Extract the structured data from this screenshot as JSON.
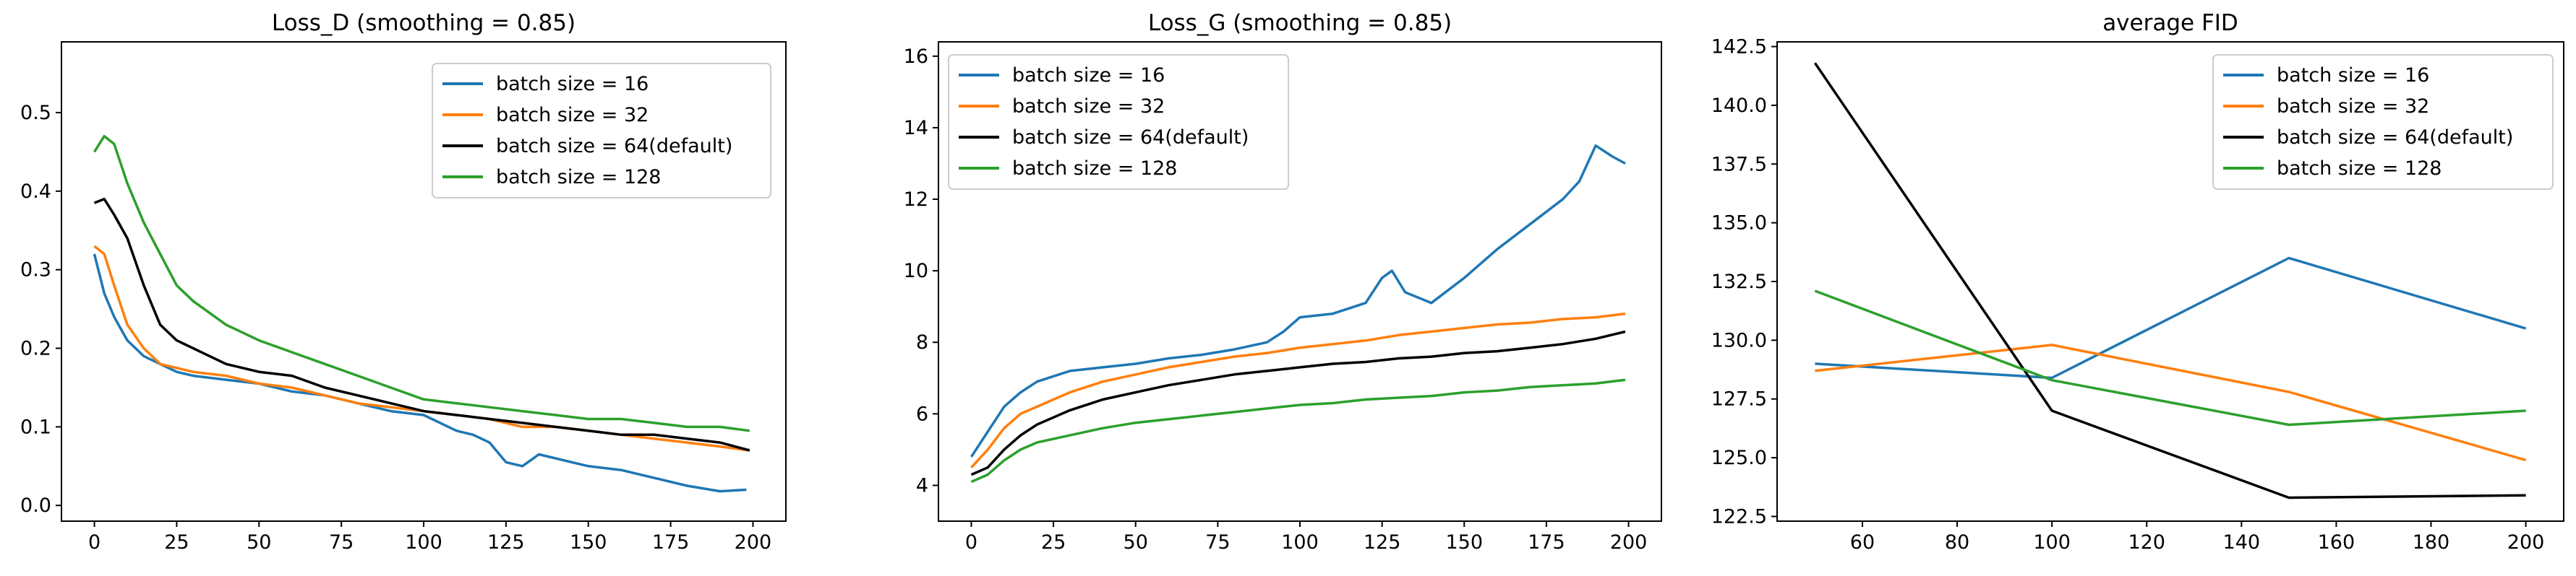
{
  "colors": {
    "bs16": "#1f77b4",
    "bs32": "#ff7f0e",
    "bs64": "#000000",
    "bs128": "#2ca02c"
  },
  "chart_data": [
    {
      "type": "line",
      "title": "Loss_D (smoothing = 0.85)",
      "xlabel": "",
      "ylabel": "",
      "xlim": [
        -10,
        210
      ],
      "ylim": [
        -0.02,
        0.59
      ],
      "xticks": [
        0,
        25,
        50,
        75,
        100,
        125,
        150,
        175,
        200
      ],
      "yticks": [
        0.0,
        0.1,
        0.2,
        0.3,
        0.4,
        0.5
      ],
      "ytick_labels": [
        "0.0",
        "0.1",
        "0.2",
        "0.3",
        "0.4",
        "0.5"
      ],
      "legend_position": "top-right",
      "series": [
        {
          "name": "batch size = 16",
          "color_key": "bs16",
          "x": [
            0,
            3,
            6,
            10,
            15,
            20,
            25,
            30,
            40,
            50,
            60,
            70,
            80,
            90,
            100,
            105,
            110,
            115,
            120,
            125,
            130,
            135,
            140,
            145,
            150,
            160,
            170,
            180,
            190,
            198
          ],
          "values": [
            0.32,
            0.27,
            0.24,
            0.21,
            0.19,
            0.18,
            0.17,
            0.165,
            0.16,
            0.155,
            0.145,
            0.14,
            0.13,
            0.12,
            0.115,
            0.105,
            0.095,
            0.09,
            0.08,
            0.055,
            0.05,
            0.065,
            0.06,
            0.055,
            0.05,
            0.045,
            0.035,
            0.025,
            0.018,
            0.02
          ]
        },
        {
          "name": "batch size = 32",
          "color_key": "bs32",
          "x": [
            0,
            3,
            6,
            10,
            15,
            20,
            30,
            40,
            50,
            60,
            70,
            80,
            90,
            100,
            110,
            120,
            130,
            140,
            150,
            160,
            170,
            180,
            190,
            199
          ],
          "values": [
            0.33,
            0.32,
            0.28,
            0.23,
            0.2,
            0.18,
            0.17,
            0.165,
            0.155,
            0.15,
            0.14,
            0.13,
            0.125,
            0.12,
            0.115,
            0.11,
            0.1,
            0.1,
            0.095,
            0.09,
            0.085,
            0.08,
            0.075,
            0.07
          ]
        },
        {
          "name": "batch size = 64(default)",
          "color_key": "bs64",
          "x": [
            0,
            3,
            6,
            10,
            15,
            20,
            25,
            30,
            35,
            40,
            50,
            60,
            70,
            80,
            90,
            100,
            110,
            120,
            130,
            140,
            150,
            160,
            170,
            180,
            190,
            199
          ],
          "values": [
            0.385,
            0.39,
            0.37,
            0.34,
            0.28,
            0.23,
            0.21,
            0.2,
            0.19,
            0.18,
            0.17,
            0.165,
            0.15,
            0.14,
            0.13,
            0.12,
            0.115,
            0.11,
            0.105,
            0.1,
            0.095,
            0.09,
            0.09,
            0.085,
            0.08,
            0.07
          ]
        },
        {
          "name": "batch size = 128",
          "color_key": "bs128",
          "x": [
            0,
            3,
            6,
            10,
            15,
            20,
            25,
            30,
            40,
            50,
            60,
            70,
            80,
            90,
            100,
            110,
            120,
            130,
            140,
            150,
            160,
            170,
            180,
            190,
            199
          ],
          "values": [
            0.45,
            0.47,
            0.46,
            0.41,
            0.36,
            0.32,
            0.28,
            0.26,
            0.23,
            0.21,
            0.195,
            0.18,
            0.165,
            0.15,
            0.135,
            0.13,
            0.125,
            0.12,
            0.115,
            0.11,
            0.11,
            0.105,
            0.1,
            0.1,
            0.095
          ]
        }
      ]
    },
    {
      "type": "line",
      "title": "Loss_G (smoothing = 0.85)",
      "xlabel": "",
      "ylabel": "",
      "xlim": [
        -10,
        210
      ],
      "ylim": [
        3.0,
        16.4
      ],
      "xticks": [
        0,
        25,
        50,
        75,
        100,
        125,
        150,
        175,
        200
      ],
      "yticks": [
        4,
        6,
        8,
        10,
        12,
        14,
        16
      ],
      "ytick_labels": [
        "4",
        "6",
        "8",
        "10",
        "12",
        "14",
        "16"
      ],
      "legend_position": "top-left",
      "series": [
        {
          "name": "batch size = 16",
          "color_key": "bs16",
          "x": [
            0,
            5,
            10,
            15,
            20,
            30,
            40,
            50,
            60,
            70,
            80,
            90,
            95,
            100,
            110,
            120,
            125,
            128,
            132,
            140,
            150,
            160,
            170,
            180,
            185,
            190,
            195,
            199
          ],
          "values": [
            4.8,
            5.5,
            6.2,
            6.6,
            6.9,
            7.2,
            7.3,
            7.4,
            7.55,
            7.65,
            7.8,
            8.0,
            8.3,
            8.7,
            8.8,
            9.1,
            9.8,
            10.0,
            9.4,
            9.1,
            9.8,
            10.6,
            11.3,
            12.0,
            12.5,
            13.5,
            13.2,
            13.0
          ]
        },
        {
          "name": "batch size = 32",
          "color_key": "bs32",
          "x": [
            0,
            5,
            10,
            15,
            20,
            30,
            40,
            50,
            60,
            70,
            80,
            90,
            100,
            110,
            120,
            130,
            140,
            150,
            160,
            170,
            180,
            190,
            199
          ],
          "values": [
            4.5,
            5.0,
            5.6,
            6.0,
            6.2,
            6.6,
            6.9,
            7.1,
            7.3,
            7.45,
            7.6,
            7.7,
            7.85,
            7.95,
            8.05,
            8.2,
            8.3,
            8.4,
            8.5,
            8.55,
            8.65,
            8.7,
            8.8
          ]
        },
        {
          "name": "batch size = 64(default)",
          "color_key": "bs64",
          "x": [
            0,
            5,
            10,
            15,
            20,
            30,
            40,
            50,
            60,
            70,
            80,
            90,
            100,
            110,
            120,
            130,
            140,
            150,
            160,
            170,
            180,
            190,
            199
          ],
          "values": [
            4.3,
            4.5,
            5.0,
            5.4,
            5.7,
            6.1,
            6.4,
            6.6,
            6.8,
            6.95,
            7.1,
            7.2,
            7.3,
            7.4,
            7.45,
            7.55,
            7.6,
            7.7,
            7.75,
            7.85,
            7.95,
            8.1,
            8.3
          ]
        },
        {
          "name": "batch size = 128",
          "color_key": "bs128",
          "x": [
            0,
            5,
            10,
            15,
            20,
            30,
            40,
            50,
            60,
            70,
            80,
            90,
            100,
            110,
            120,
            130,
            140,
            150,
            160,
            170,
            180,
            190,
            199
          ],
          "values": [
            4.1,
            4.3,
            4.7,
            5.0,
            5.2,
            5.4,
            5.6,
            5.75,
            5.85,
            5.95,
            6.05,
            6.15,
            6.25,
            6.3,
            6.4,
            6.45,
            6.5,
            6.6,
            6.65,
            6.75,
            6.8,
            6.85,
            6.95
          ]
        }
      ]
    },
    {
      "type": "line",
      "title": "average FID",
      "xlabel": "",
      "ylabel": "",
      "xlim": [
        42,
        208
      ],
      "ylim": [
        122.3,
        142.7
      ],
      "xticks": [
        60,
        80,
        100,
        120,
        140,
        160,
        180,
        200
      ],
      "yticks": [
        122.5,
        125.0,
        127.5,
        130.0,
        132.5,
        135.0,
        137.5,
        140.0,
        142.5
      ],
      "ytick_labels": [
        "122.5",
        "125.0",
        "127.5",
        "130.0",
        "132.5",
        "135.0",
        "137.5",
        "140.0",
        "142.5"
      ],
      "legend_position": "top-right",
      "series": [
        {
          "name": "batch size = 16",
          "color_key": "bs16",
          "x": [
            50,
            100,
            150,
            200
          ],
          "values": [
            129.0,
            128.4,
            133.5,
            130.5
          ]
        },
        {
          "name": "batch size = 32",
          "color_key": "bs32",
          "x": [
            50,
            100,
            150,
            200
          ],
          "values": [
            128.7,
            129.8,
            127.8,
            124.9
          ]
        },
        {
          "name": "batch size = 64(default)",
          "color_key": "bs64",
          "x": [
            50,
            100,
            150,
            200
          ],
          "values": [
            141.8,
            127.0,
            123.3,
            123.4
          ]
        },
        {
          "name": "batch size = 128",
          "color_key": "bs128",
          "x": [
            50,
            100,
            150,
            200
          ],
          "values": [
            132.1,
            128.3,
            126.4,
            127.0
          ]
        }
      ]
    }
  ]
}
